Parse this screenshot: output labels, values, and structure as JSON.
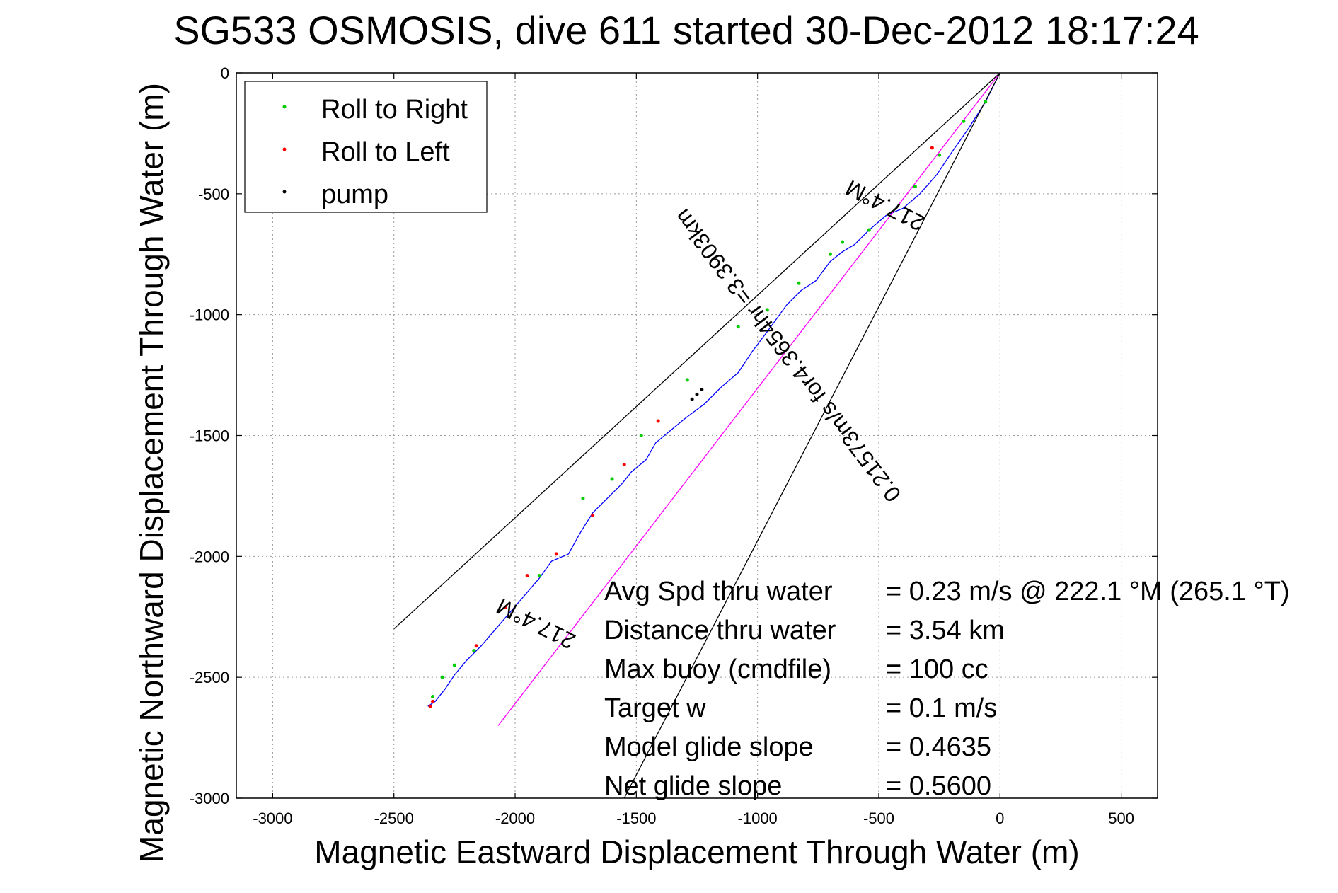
{
  "chart_data": {
    "type": "line",
    "title": "SG533 OSMOSIS, dive 611 started 30-Dec-2012 18:17:24",
    "xlabel": "Magnetic Eastward Displacement Through Water (m)",
    "ylabel": "Magnetic Northward Displacement Through Water (m)",
    "xlim": [
      -3150,
      650
    ],
    "ylim": [
      -3000,
      0
    ],
    "xticks": [
      -3000,
      -2500,
      -2000,
      -1500,
      -1000,
      -500,
      0,
      500
    ],
    "yticks": [
      0,
      -500,
      -1000,
      -1500,
      -2000,
      -2500,
      -3000
    ],
    "xtick_labels": [
      "-3000",
      "-2500",
      "-2000",
      "-1500",
      "-1000",
      "-500",
      "0",
      "500"
    ],
    "ytick_labels": [
      "0",
      "-500",
      "-1000",
      "-1500",
      "-2000",
      "-2500",
      "-3000"
    ],
    "grid": true,
    "legend_position": "top-left",
    "legend": [
      {
        "label": "Roll to Right",
        "color": "#00cc00"
      },
      {
        "label": "Roll to Left",
        "color": "#ff0000"
      },
      {
        "label": "pump",
        "color": "#000000"
      }
    ],
    "series": [
      {
        "color": "#0000ff",
        "x": [
          0,
          -60,
          -130,
          -200,
          -260,
          -330,
          -400,
          -470,
          -540,
          -600,
          -650,
          -700,
          -760,
          -820,
          -880,
          -960,
          -1020,
          -1080,
          -1150,
          -1220,
          -1300,
          -1360,
          -1420,
          -1460,
          -1520,
          -1560,
          -1620,
          -1680,
          -1730,
          -1780,
          -1850,
          -1900,
          -1960,
          -2020,
          -2080,
          -2140,
          -2200,
          -2250,
          -2290,
          -2330,
          -2360
        ],
        "y": [
          0,
          -120,
          -230,
          -330,
          -420,
          -500,
          -560,
          -590,
          -650,
          -710,
          -740,
          -780,
          -860,
          -900,
          -960,
          -1070,
          -1150,
          -1240,
          -1300,
          -1370,
          -1430,
          -1480,
          -1530,
          -1600,
          -1650,
          -1700,
          -1760,
          -1820,
          -1900,
          -1990,
          -2020,
          -2090,
          -2160,
          -2230,
          -2300,
          -2370,
          -2430,
          -2490,
          -2550,
          -2600,
          -2620
        ]
      },
      {
        "color": "#ff00ff",
        "x": [
          0,
          -2070
        ],
        "y": [
          0,
          -2700
        ]
      },
      {
        "color": "#000000",
        "x": [
          0,
          -2500
        ],
        "y": [
          0,
          -2300
        ]
      },
      {
        "color": "#000000",
        "x": [
          0,
          -1550
        ],
        "y": [
          0,
          -3000
        ]
      }
    ],
    "markers": {
      "roll_right": {
        "color": "#00cc00",
        "x": [
          -60,
          -150,
          -250,
          -350,
          -540,
          -650,
          -700,
          -830,
          -960,
          -1080,
          -1290,
          -1480,
          -1600,
          -1720,
          -1900,
          -2170,
          -2250,
          -2300,
          -2340
        ],
        "y": [
          -120,
          -200,
          -340,
          -470,
          -650,
          -700,
          -750,
          -870,
          -980,
          -1050,
          -1270,
          -1500,
          -1680,
          -1760,
          -2080,
          -2390,
          -2450,
          -2500,
          -2580
        ]
      },
      "roll_left": {
        "color": "#ff0000",
        "x": [
          -280,
          -1410,
          -1550,
          -1680,
          -1830,
          -1950,
          -2040,
          -2160,
          -2340,
          -2350
        ],
        "y": [
          -310,
          -1440,
          -1620,
          -1830,
          -1990,
          -2080,
          -2210,
          -2370,
          -2600,
          -2620
        ]
      },
      "pump": {
        "color": "#000000",
        "x": [
          -1230,
          -1250,
          -1270
        ],
        "y": [
          -1310,
          -1330,
          -1350
        ]
      }
    },
    "annotations": [
      {
        "text": "217.4°M",
        "x": -460,
        "y": -520,
        "rotation": 207
      },
      {
        "text": "0.21573m/s for4.3654hr =3.3903km",
        "x": -850,
        "y": -1150,
        "rotation": 233
      },
      {
        "text": "217.4°M",
        "x": -1900,
        "y": -2250,
        "rotation": 207
      }
    ],
    "stats": [
      {
        "label": "Avg Spd thru water",
        "value": "=  0.23 m/s @ 222.1 °M (265.1 °T)"
      },
      {
        "label": "Distance thru water",
        "value": "=  3.54 km"
      },
      {
        "label": "Max buoy (cmdfile)",
        "value": "= 100 cc"
      },
      {
        "label": "Target w",
        "value": "= 0.1 m/s"
      },
      {
        "label": "Model glide slope",
        "value": "= 0.4635"
      },
      {
        "label": "Net glide slope",
        "value": "= 0.5600"
      }
    ]
  }
}
